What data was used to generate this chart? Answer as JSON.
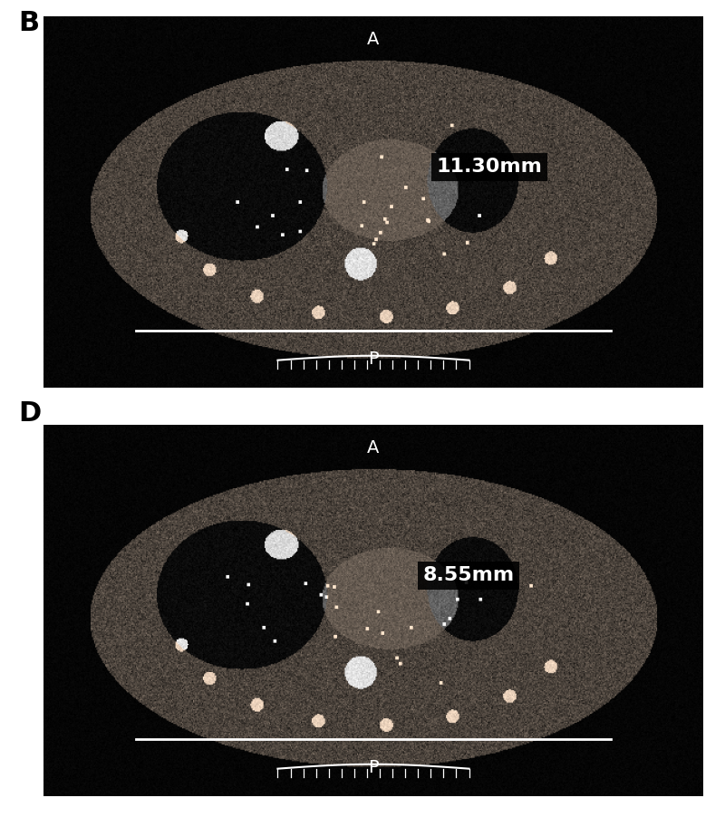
{
  "figure_bg": "#ffffff",
  "panel_bg": "#000000",
  "label_B": "B",
  "label_D": "D",
  "label_A": "A",
  "label_P": "P",
  "measurement_B": "11.30mm",
  "measurement_D": "8.55mm",
  "label_fontsize": 20,
  "panel_label_fontsize": 22,
  "measurement_fontsize": 16,
  "orientation_fontsize": 14,
  "text_color_white": "#ffffff",
  "text_color_black": "#000000"
}
